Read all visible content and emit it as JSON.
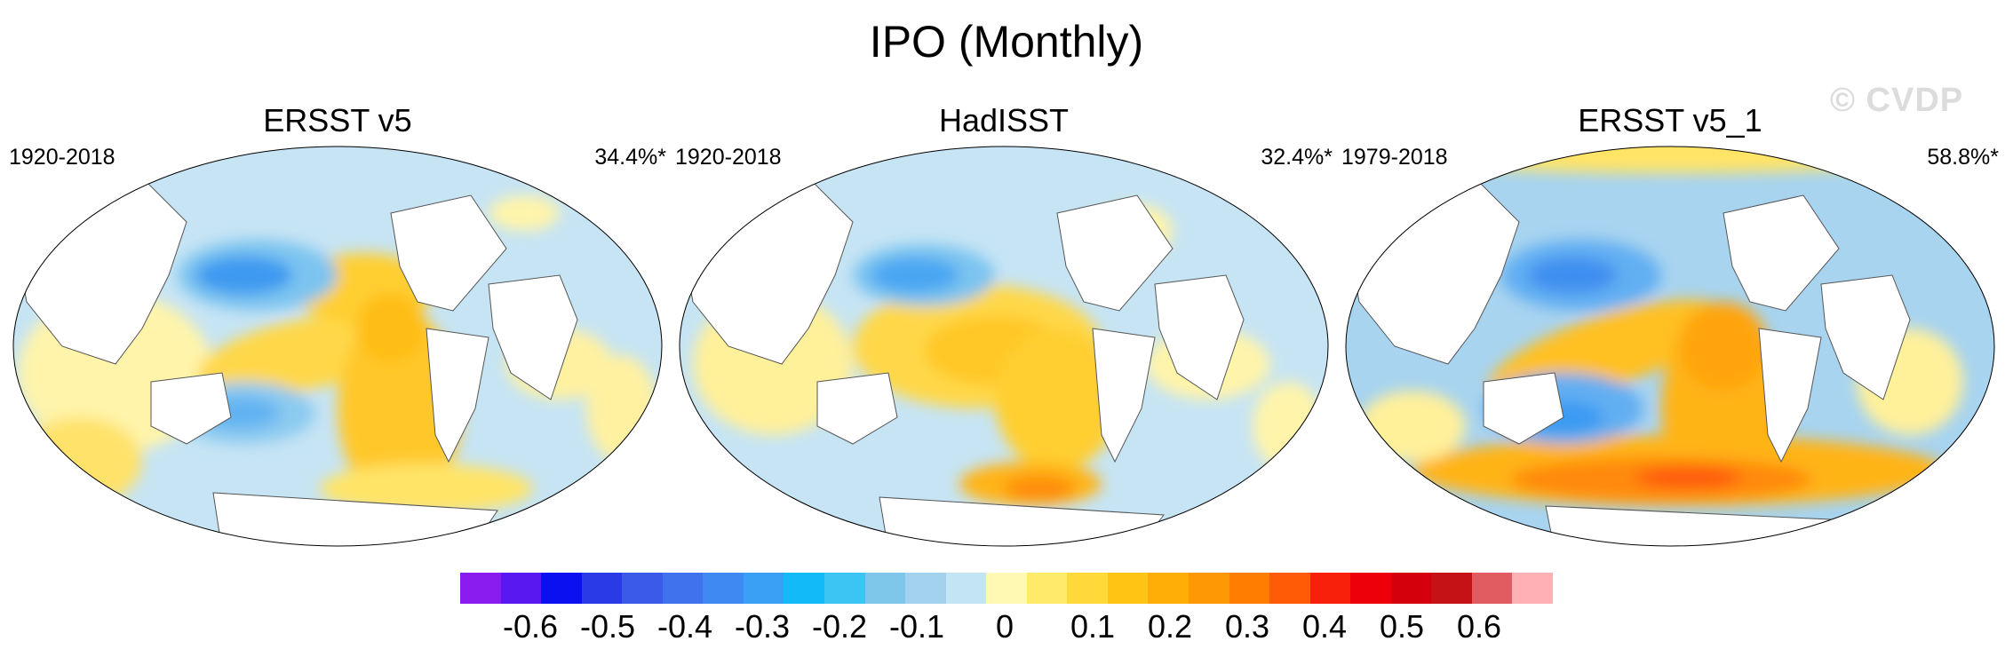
{
  "title": "IPO (Monthly)",
  "watermark": "© CVDP",
  "panels": [
    {
      "title": "ERSST v5",
      "years": "1920-2018",
      "variance": "34.4%*"
    },
    {
      "title": "HadISST",
      "years": "1920-2018",
      "variance": "32.4%*"
    },
    {
      "title": "ERSST v5_1",
      "years": "1979-2018",
      "variance": "58.8%*"
    }
  ],
  "colorbar": {
    "colors": [
      "#8a1cf0",
      "#5a18f0",
      "#0a10f0",
      "#2a3ae6",
      "#3c5ae8",
      "#3f72ec",
      "#3f8af2",
      "#3aa0f6",
      "#12baf6",
      "#3cc4f2",
      "#7ec6ea",
      "#a2d2ee",
      "#c2e4f4",
      "#fff9b4",
      "#ffea6a",
      "#ffd83a",
      "#ffc414",
      "#ffae08",
      "#ff9804",
      "#ff7e02",
      "#ff5a06",
      "#f8200a",
      "#ee000a",
      "#d4000c",
      "#c41216",
      "#e05c60",
      "#ffb0b4"
    ],
    "labels": [
      "-0.6",
      "-0.5",
      "-0.4",
      "-0.3",
      "-0.2",
      "-0.1",
      "0",
      "0.1",
      "0.2",
      "0.3",
      "0.4",
      "0.5",
      "0.6"
    ]
  }
}
